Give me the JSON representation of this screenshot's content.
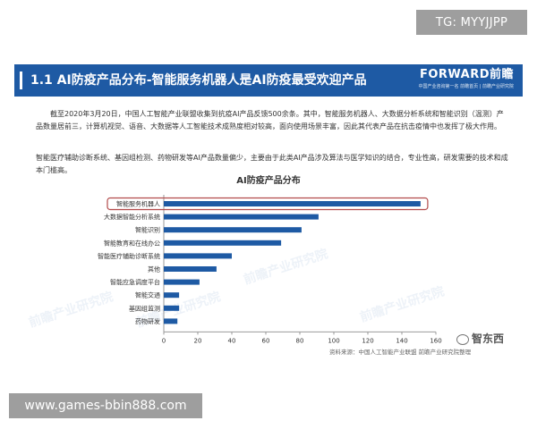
{
  "overlay": {
    "tg_handle": "TG: MYYJJPP",
    "site_url": "www.games-bbin888.com"
  },
  "header": {
    "title": "1.1 AI防疫产品分布-智能服务机器人是AI防疫最受欢迎产品",
    "logo_text": "FORWARD前瞻",
    "logo_slogan": "中国产业咨询第一名 前瞻首页 | 前瞻产业研究院"
  },
  "body": {
    "paragraph1": "截至2020年3月20日，中国人工智能产业联盟收集到抗疫AI产品反馈500余条。其中，智能服务机器人、大数据分析系统和智能识别（温测）产品数量居前三，计算机视觉、语音、大数据等人工智能技术成熟度相对较高，面向使用场景丰富，因此其代表产品在抗击疫情中也发挥了极大作用。",
    "paragraph2": "智能医疗辅助诊断系统、基因组检测、药物研发等AI产品数量偏少，主要由于此类AI产品涉及算法与医学知识的结合，专业性高，研发需要的技术和成本门槛高。"
  },
  "chart_data": {
    "type": "bar",
    "orientation": "horizontal",
    "title": "AI防疫产品分布",
    "categories": [
      "智能服务机器人",
      "大数据智能分析系统",
      "智能识别",
      "智能教育和在线办公",
      "智能医疗辅助诊断系统",
      "其他",
      "智能应急调度平台",
      "智能交通",
      "基因组监测",
      "药物研发"
    ],
    "values": [
      151,
      91,
      81,
      69,
      40,
      31,
      21,
      9,
      9,
      8
    ],
    "xlim": [
      0,
      160
    ],
    "xticks": [
      0,
      20,
      40,
      60,
      80,
      100,
      120,
      140,
      160
    ],
    "bar_color": "#1e5aa4",
    "highlight_color": "#b24a4a",
    "highlight_index": 0,
    "grid": false
  },
  "footer": {
    "source": "资料来源：中国人工智能产业联盟  前瞻产业研究院整理",
    "wechat_name": "智东西"
  },
  "watermark_text": "前瞻产业研究院"
}
